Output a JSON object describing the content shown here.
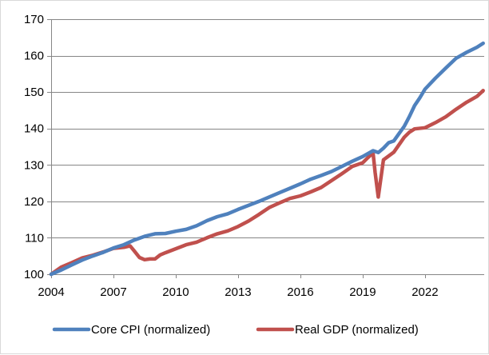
{
  "chart_data": {
    "type": "line",
    "title": "",
    "xlabel": "",
    "ylabel": "",
    "xlim": [
      2004,
      2024.85
    ],
    "ylim": [
      100,
      170
    ],
    "x_ticks": [
      2004,
      2007,
      2010,
      2013,
      2016,
      2019,
      2022
    ],
    "x_tick_labels": [
      "2004",
      "2007",
      "2010",
      "2013",
      "2016",
      "2019",
      "2022"
    ],
    "y_ticks": [
      100,
      110,
      120,
      130,
      140,
      150,
      160,
      170
    ],
    "y_tick_labels": [
      "100",
      "110",
      "120",
      "130",
      "140",
      "150",
      "160",
      "170"
    ],
    "grid": "horizontal",
    "legend_position": "bottom",
    "series": [
      {
        "name": "Core CPI (normalized)",
        "color": "#4f81bd",
        "x": [
          2004.0,
          2004.5,
          2005.0,
          2005.5,
          2006.0,
          2006.5,
          2007.0,
          2007.5,
          2008.0,
          2008.5,
          2009.0,
          2009.5,
          2010.0,
          2010.5,
          2011.0,
          2011.5,
          2012.0,
          2012.5,
          2013.0,
          2013.5,
          2014.0,
          2014.5,
          2015.0,
          2015.5,
          2016.0,
          2016.5,
          2017.0,
          2017.5,
          2018.0,
          2018.5,
          2019.0,
          2019.5,
          2019.75,
          2020.0,
          2020.25,
          2020.5,
          2020.75,
          2021.0,
          2021.25,
          2021.5,
          2021.75,
          2022.0,
          2022.5,
          2023.0,
          2023.5,
          2024.0,
          2024.5,
          2024.8
        ],
        "values": [
          100.0,
          101.2,
          102.6,
          103.9,
          105.0,
          106.0,
          107.2,
          108.1,
          109.4,
          110.4,
          111.1,
          111.2,
          111.8,
          112.3,
          113.3,
          114.7,
          115.8,
          116.6,
          117.8,
          118.9,
          120.0,
          121.2,
          122.4,
          123.6,
          124.8,
          126.1,
          127.1,
          128.2,
          129.6,
          131.0,
          132.3,
          133.9,
          133.4,
          134.6,
          136.1,
          136.6,
          138.6,
          140.6,
          143.3,
          146.3,
          148.4,
          150.8,
          153.8,
          156.6,
          159.3,
          160.9,
          162.3,
          163.4
        ]
      },
      {
        "name": "Real GDP (normalized)",
        "color": "#c0504d",
        "x": [
          2004.0,
          2004.5,
          2005.0,
          2005.5,
          2006.0,
          2006.5,
          2007.0,
          2007.5,
          2007.8,
          2008.0,
          2008.25,
          2008.5,
          2008.75,
          2009.0,
          2009.25,
          2009.5,
          2010.0,
          2010.5,
          2011.0,
          2011.5,
          2012.0,
          2012.5,
          2013.0,
          2013.5,
          2014.0,
          2014.5,
          2015.0,
          2015.5,
          2016.0,
          2016.5,
          2017.0,
          2017.5,
          2018.0,
          2018.5,
          2019.0,
          2019.25,
          2019.5,
          2019.6,
          2019.75,
          2020.0,
          2020.5,
          2021.0,
          2021.25,
          2021.5,
          2022.0,
          2022.5,
          2023.0,
          2023.5,
          2024.0,
          2024.5,
          2024.8
        ],
        "values": [
          100.0,
          102.0,
          103.2,
          104.5,
          105.2,
          106.1,
          107.1,
          107.4,
          107.8,
          106.4,
          104.6,
          104.0,
          104.2,
          104.2,
          105.3,
          105.9,
          107.0,
          108.1,
          108.8,
          110.0,
          111.1,
          111.9,
          113.1,
          114.6,
          116.4,
          118.3,
          119.6,
          120.8,
          121.5,
          122.6,
          123.8,
          125.7,
          127.6,
          129.6,
          130.6,
          132.0,
          133.3,
          127.9,
          121.2,
          131.4,
          133.5,
          137.6,
          139.0,
          139.9,
          140.2,
          141.6,
          143.2,
          145.3,
          147.2,
          148.8,
          150.4
        ]
      }
    ]
  }
}
